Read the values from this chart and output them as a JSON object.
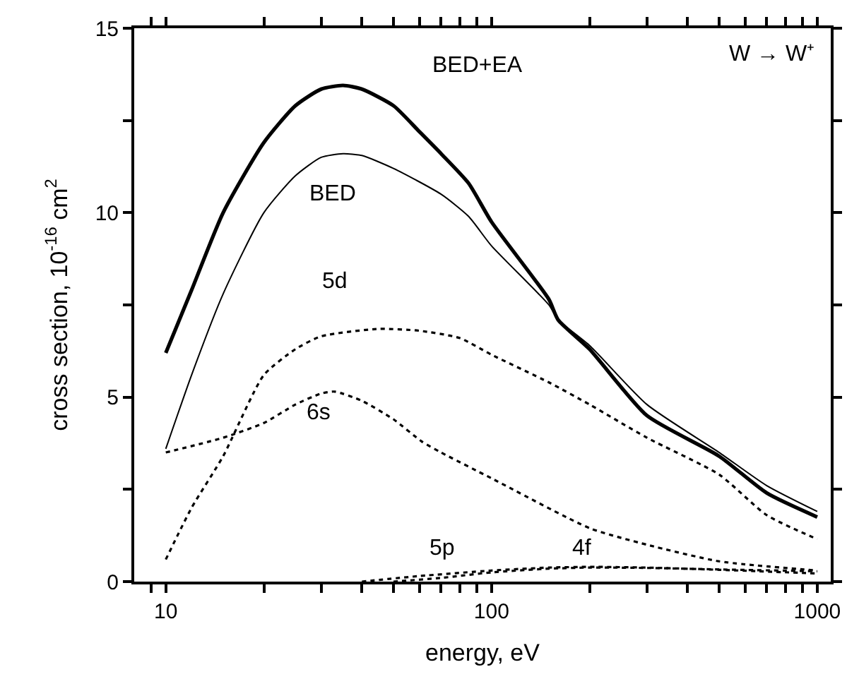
{
  "chart_data": {
    "type": "line",
    "xlabel": "energy, eV",
    "ylabel": "cross section, 10$^{-16}$ cm$^{2}$",
    "log": "x",
    "xlim": [
      8,
      1100
    ],
    "ylim": [
      0,
      15
    ],
    "xticks": [
      {
        "value": 9,
        "label": null
      },
      10,
      {
        "value": 20,
        "label": null
      },
      {
        "value": 30,
        "label": null
      },
      {
        "value": 40,
        "label": null
      },
      {
        "value": 50,
        "label": null
      },
      {
        "value": 60,
        "label": null
      },
      {
        "value": 70,
        "label": null
      },
      {
        "value": 80,
        "label": null
      },
      {
        "value": 90,
        "label": null
      },
      100,
      {
        "value": 200,
        "label": null
      },
      {
        "value": 300,
        "label": null
      },
      {
        "value": 400,
        "label": null
      },
      {
        "value": 500,
        "label": null
      },
      {
        "value": 600,
        "label": null
      },
      {
        "value": 700,
        "label": null
      },
      {
        "value": 800,
        "label": null
      },
      {
        "value": 900,
        "label": null
      },
      1000
    ],
    "yticks": [
      0,
      {
        "value": 2.5,
        "label": null
      },
      5,
      {
        "value": 7.5,
        "label": null
      },
      10,
      {
        "value": 12.5,
        "label": null
      },
      15
    ],
    "marker": "none",
    "series": [
      {
        "color": "#000000",
        "line_style": "solid",
        "x": [
          10,
          12,
          15,
          20,
          25,
          30,
          35,
          40,
          50,
          60,
          70,
          85,
          100,
          150,
          160,
          200,
          300,
          500,
          700,
          1000
        ],
        "values": [
          6.2,
          7.9,
          10.0,
          11.9,
          12.9,
          13.35,
          13.45,
          13.35,
          12.9,
          12.2,
          11.6,
          10.8,
          9.75,
          7.65,
          7.1,
          6.3,
          4.5,
          3.4,
          2.4,
          1.75
        ]
      },
      {
        "color": "#000000",
        "line_style": "solid",
        "x": [
          10,
          12,
          15,
          20,
          25,
          30,
          35,
          40,
          50,
          70,
          85,
          100,
          150,
          160,
          200,
          300,
          500,
          700,
          1000
        ],
        "values": [
          3.6,
          5.6,
          7.8,
          10.0,
          11.0,
          11.5,
          11.6,
          11.55,
          11.2,
          10.5,
          9.9,
          9.1,
          7.5,
          7.1,
          6.4,
          4.8,
          3.5,
          2.6,
          1.9
        ]
      },
      {
        "color": "#000000",
        "line_style": "dotted",
        "x": [
          10,
          12,
          15,
          20,
          25,
          30,
          45,
          60,
          80,
          100,
          150,
          200,
          300,
          500,
          700,
          1000
        ],
        "values": [
          0.6,
          2.0,
          3.4,
          5.6,
          6.3,
          6.65,
          6.85,
          6.8,
          6.6,
          6.15,
          5.4,
          4.8,
          3.9,
          2.9,
          1.8,
          1.15
        ]
      },
      {
        "color": "#000000",
        "line_style": "dotted",
        "x": [
          10,
          15,
          20,
          25,
          30,
          33,
          40,
          50,
          61,
          70,
          100,
          200,
          300,
          500,
          1000
        ],
        "values": [
          3.5,
          3.9,
          4.3,
          4.8,
          5.1,
          5.15,
          4.9,
          4.4,
          3.8,
          3.5,
          2.8,
          1.45,
          1.0,
          0.55,
          0.3
        ]
      },
      {
        "color": "#000000",
        "line_style": "dotted",
        "x": [
          40,
          60,
          100,
          150,
          200,
          300,
          500,
          1000
        ],
        "values": [
          0,
          0.15,
          0.3,
          0.38,
          0.4,
          0.38,
          0.32,
          0.22
        ]
      },
      {
        "color": "#000000",
        "line_style": "dotted",
        "x": [
          50,
          70,
          100,
          150,
          200,
          300,
          500,
          1000
        ],
        "values": [
          0,
          0.1,
          0.25,
          0.35,
          0.38,
          0.37,
          0.33,
          0.28
        ]
      }
    ],
    "annotations": [
      "BED+EA",
      "BED",
      "5d",
      "6s",
      "5p",
      "4f",
      "W → W⁺"
    ]
  }
}
